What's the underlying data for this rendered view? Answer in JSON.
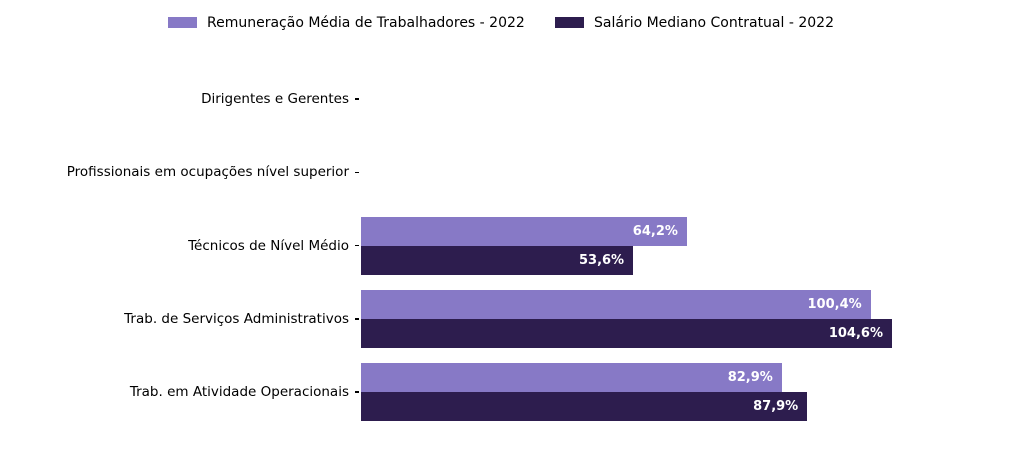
{
  "chart_data": {
    "type": "bar",
    "orientation": "horizontal",
    "title": "",
    "xlabel": "",
    "ylabel": "",
    "categories": [
      "Dirigentes e Gerentes",
      "Profissionais em ocupações nível superior",
      "Técnicos de Nível Médio",
      "Trab. de Serviços Administrativos",
      "Trab. em Atividade Operacionais"
    ],
    "series": [
      {
        "name": "Remuneração Média de Trabalhadores - 2022",
        "color": "#8779C6",
        "values": [
          null,
          null,
          64.2,
          100.4,
          82.9
        ],
        "data_labels": [
          "",
          "",
          "64,2%",
          "100,4%",
          "82,9%"
        ]
      },
      {
        "name": "Salário Mediano Contratual - 2022",
        "color": "#2D1D4E",
        "values": [
          null,
          null,
          53.6,
          104.6,
          87.9
        ],
        "data_labels": [
          "",
          "",
          "53,6%",
          "104,6%",
          "87,9%"
        ]
      }
    ],
    "value_unit": "%",
    "decimal_separator": ",",
    "xlim": [
      0,
      128.6
    ],
    "grid": false,
    "legend_position": "top",
    "data_label_color": "#ffffff",
    "background_color": "#ffffff",
    "text_color": "#000000"
  }
}
